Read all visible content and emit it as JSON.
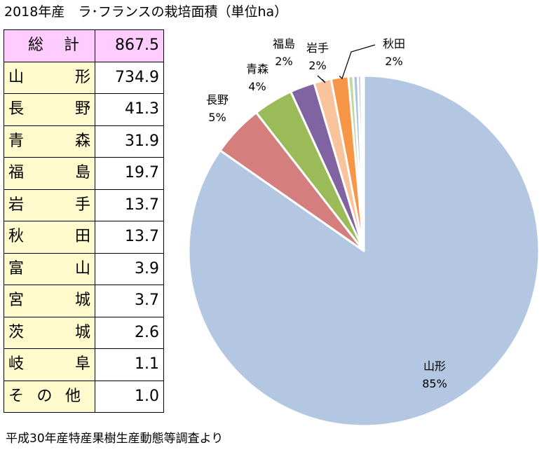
{
  "title": "2018年産　ラ･フランスの栽培面積（単位ha）",
  "source": "平成30年産特産果樹生産動態等調査より",
  "table": {
    "total": {
      "label": [
        "総",
        "計"
      ],
      "value": "867.5"
    },
    "rows": [
      {
        "label": [
          "山",
          "形"
        ],
        "value": "734.9"
      },
      {
        "label": [
          "長",
          "野"
        ],
        "value": "41.3"
      },
      {
        "label": [
          "青",
          "森"
        ],
        "value": "31.9"
      },
      {
        "label": [
          "福",
          "島"
        ],
        "value": "19.7"
      },
      {
        "label": [
          "岩",
          "手"
        ],
        "value": "13.7"
      },
      {
        "label": [
          "秋",
          "田"
        ],
        "value": "13.7"
      },
      {
        "label": [
          "富",
          "山"
        ],
        "value": "3.9"
      },
      {
        "label": [
          "宮",
          "城"
        ],
        "value": "3.7"
      },
      {
        "label": [
          "茨",
          "城"
        ],
        "value": "2.6"
      },
      {
        "label": [
          "岐",
          "阜"
        ],
        "value": "1.1"
      },
      {
        "label": [
          "そ",
          "の",
          "他"
        ],
        "value": "1.0"
      }
    ]
  },
  "chart_data": {
    "type": "pie",
    "title": "2018年産　ラ･フランスの栽培面積（単位ha）",
    "unit": "ha",
    "start": "12 o'clock, clockwise",
    "slices": [
      {
        "name": "山形",
        "value": 734.9,
        "pct_label": "85%",
        "color": "#b3c7e3",
        "labeled": true
      },
      {
        "name": "長野",
        "value": 41.3,
        "pct_label": "5%",
        "color": "#d47f7d",
        "labeled": true
      },
      {
        "name": "青森",
        "value": 31.9,
        "pct_label": "4%",
        "color": "#9bbb59",
        "labeled": true
      },
      {
        "name": "福島",
        "value": 19.7,
        "pct_label": "2%",
        "color": "#8064a2",
        "labeled": true
      },
      {
        "name": "岩手",
        "value": 13.7,
        "pct_label": "2%",
        "color": "#f9c49c",
        "labeled": true
      },
      {
        "name": "秋田",
        "value": 13.7,
        "pct_label": "2%",
        "color": "#f79646",
        "labeled": true
      },
      {
        "name": "富山",
        "value": 3.9,
        "color": "#c0d8a0",
        "labeled": false
      },
      {
        "name": "宮城",
        "value": 3.7,
        "color": "#a9c2e0",
        "labeled": false
      },
      {
        "name": "茨城",
        "value": 2.6,
        "color": "#c8bcd9",
        "labeled": false
      },
      {
        "name": "岐阜",
        "value": 1.1,
        "color": "#f3d1c8",
        "labeled": false
      },
      {
        "name": "その他",
        "value": 1.0,
        "color": "#dde6f2",
        "labeled": false
      }
    ]
  }
}
